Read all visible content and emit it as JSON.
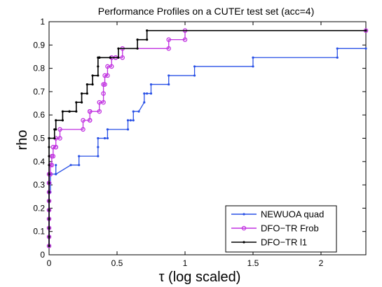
{
  "chart_data": {
    "type": "line",
    "title": "Performance Profiles on a CUTEr test set (acc=4)",
    "xlabel": "τ (log scaled)",
    "ylabel": "rho",
    "xlim": [
      0,
      2.33
    ],
    "ylim": [
      0,
      1
    ],
    "x_ticks": [
      "0",
      "0.5",
      "1",
      "1.5",
      "2"
    ],
    "x_tick_values": [
      0,
      0.5,
      1,
      1.5,
      2
    ],
    "y_ticks": [
      "0",
      "0.1",
      "0.2",
      "0.3",
      "0.4",
      "0.5",
      "0.6",
      "0.7",
      "0.8",
      "0.9",
      "1"
    ],
    "y_tick_values": [
      0,
      0.1,
      0.2,
      0.3,
      0.4,
      0.5,
      0.6,
      0.7,
      0.8,
      0.9,
      1
    ],
    "grid": false,
    "legend_position": "bottom-right",
    "series": [
      {
        "name": "NEWUOA quad",
        "color": "#2850e6",
        "marker": "dot",
        "x": [
          0,
          0,
          0,
          0,
          0,
          0,
          0,
          0,
          0,
          0.01,
          0.01,
          0.01,
          0.05,
          0.05,
          0.05,
          0.16,
          0.22,
          0.22,
          0.36,
          0.36,
          0.36,
          0.41,
          0.43,
          0.43,
          0.58,
          0.58,
          0.6,
          0.62,
          0.62,
          0.66,
          0.7,
          0.7,
          0.72,
          0.75,
          0.75,
          0.88,
          0.88,
          1.07,
          1.07,
          1.5,
          1.5,
          2.12,
          2.12,
          2.33
        ],
        "y": [
          0.038,
          0.077,
          0.115,
          0.154,
          0.192,
          0.231,
          0.269,
          0.269,
          0.269,
          0.269,
          0.308,
          0.346,
          0.346,
          0.385,
          0.346,
          0.385,
          0.385,
          0.423,
          0.423,
          0.462,
          0.5,
          0.5,
          0.5,
          0.538,
          0.538,
          0.577,
          0.577,
          0.577,
          0.615,
          0.615,
          0.654,
          0.692,
          0.692,
          0.692,
          0.731,
          0.731,
          0.769,
          0.769,
          0.808,
          0.808,
          0.846,
          0.846,
          0.885,
          0.885
        ]
      },
      {
        "name": "DFO−TR Frob",
        "color": "#c030e0",
        "marker": "circle",
        "x": [
          0,
          0,
          0,
          0,
          0,
          0,
          0,
          0,
          0,
          0,
          0.01,
          0.01,
          0.02,
          0.02,
          0.03,
          0.03,
          0.05,
          0.05,
          0.05,
          0.08,
          0.08,
          0.25,
          0.25,
          0.3,
          0.3,
          0.3,
          0.3,
          0.3,
          0.3,
          0.37,
          0.37,
          0.4,
          0.4,
          0.4,
          0.41,
          0.41,
          0.43,
          0.43,
          0.46,
          0.46,
          0.49,
          0.49,
          0.54,
          0.54,
          0.88,
          0.88,
          1.0,
          1.0,
          2.33
        ],
        "y": [
          0.038,
          0.077,
          0.115,
          0.154,
          0.192,
          0.231,
          0.269,
          0.308,
          0.308,
          0.346,
          0.346,
          0.385,
          0.385,
          0.423,
          0.423,
          0.462,
          0.462,
          0.462,
          0.5,
          0.5,
          0.538,
          0.538,
          0.577,
          0.577,
          0.577,
          0.615,
          0.615,
          0.615,
          0.615,
          0.615,
          0.654,
          0.654,
          0.692,
          0.731,
          0.731,
          0.769,
          0.769,
          0.808,
          0.808,
          0.846,
          0.846,
          0.846,
          0.846,
          0.885,
          0.885,
          0.923,
          0.923,
          0.962,
          0.962
        ]
      },
      {
        "name": "DFO−TR l1",
        "color": "#000000",
        "marker": "dot",
        "x": [
          0,
          0,
          0,
          0,
          0,
          0,
          0,
          0,
          0,
          0,
          0,
          0,
          0,
          0,
          0.04,
          0.04,
          0.05,
          0.05,
          0.1,
          0.1,
          0.15,
          0.15,
          0.2,
          0.2,
          0.24,
          0.24,
          0.28,
          0.28,
          0.32,
          0.32,
          0.36,
          0.36,
          0.36,
          0.37,
          0.37,
          0.37,
          0.45,
          0.45,
          0.51,
          0.51,
          0.65,
          0.65,
          0.72,
          0.72,
          2.33
        ],
        "y": [
          0.038,
          0.077,
          0.115,
          0.154,
          0.192,
          0.231,
          0.269,
          0.308,
          0.346,
          0.385,
          0.423,
          0.462,
          0.5,
          0.5,
          0.5,
          0.538,
          0.538,
          0.577,
          0.577,
          0.615,
          0.615,
          0.615,
          0.615,
          0.654,
          0.654,
          0.692,
          0.692,
          0.731,
          0.731,
          0.769,
          0.769,
          0.808,
          0.846,
          0.846,
          0.846,
          0.846,
          0.846,
          0.846,
          0.846,
          0.885,
          0.885,
          0.923,
          0.923,
          0.962,
          0.962
        ]
      }
    ]
  }
}
